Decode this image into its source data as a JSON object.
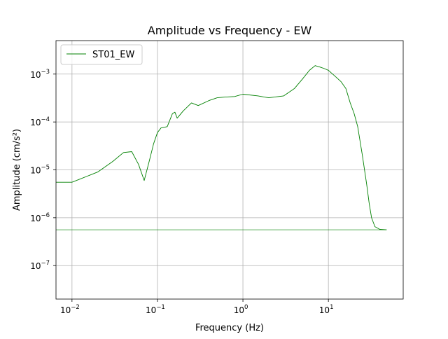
{
  "chart_data": {
    "type": "line",
    "title": "Amplitude vs Frequency - EW",
    "xlabel": "Frequency (Hz)",
    "ylabel": "Amplitude (cm/s²)",
    "x_scale": "log",
    "y_scale": "log",
    "xlim": [
      0.0065,
      75
    ],
    "ylim": [
      2e-08,
      0.005
    ],
    "grid": true,
    "legend_position": "top-left",
    "x_ticks": [
      {
        "base": "10",
        "exp": "−2",
        "value": 0.01
      },
      {
        "base": "10",
        "exp": "−1",
        "value": 0.1
      },
      {
        "base": "10",
        "exp": "0",
        "value": 1
      },
      {
        "base": "10",
        "exp": "1",
        "value": 10
      }
    ],
    "y_ticks": [
      {
        "base": "10",
        "exp": "−7",
        "value": 1e-07
      },
      {
        "base": "10",
        "exp": "−6",
        "value": 1e-06
      },
      {
        "base": "10",
        "exp": "−5",
        "value": 1e-05
      },
      {
        "base": "10",
        "exp": "−4",
        "value": 0.0001
      },
      {
        "base": "10",
        "exp": "−3",
        "value": 0.001
      }
    ],
    "series": [
      {
        "name": "ST01_EW",
        "color": "#008000",
        "x": [
          0.0065,
          0.01,
          0.02,
          0.03,
          0.04,
          0.05,
          0.06,
          0.07,
          0.08,
          0.09,
          0.1,
          0.11,
          0.13,
          0.15,
          0.16,
          0.17,
          0.2,
          0.25,
          0.3,
          0.4,
          0.5,
          0.6,
          0.8,
          1.0,
          1.5,
          2.0,
          3.0,
          4.0,
          5.0,
          6.0,
          7.0,
          8.0,
          9.0,
          10.0,
          12.0,
          14.0,
          16.0,
          18.0,
          20.0,
          22.0,
          25.0,
          28.0,
          30.0,
          32.0,
          35.0,
          40.0,
          48.0
        ],
        "y": [
          5.5e-06,
          5.5e-06,
          9e-06,
          1.5e-05,
          2.3e-05,
          2.4e-05,
          1.3e-05,
          6e-06,
          1.5e-05,
          3.5e-05,
          6e-05,
          7.5e-05,
          8e-05,
          0.00015,
          0.00016,
          0.00012,
          0.00017,
          0.00025,
          0.00022,
          0.00028,
          0.00032,
          0.00033,
          0.00034,
          0.00038,
          0.00035,
          0.00032,
          0.00035,
          0.0005,
          0.0008,
          0.0012,
          0.0015,
          0.0014,
          0.0013,
          0.0012,
          0.0009,
          0.0007,
          0.0005,
          0.00025,
          0.00015,
          8e-05,
          2e-05,
          5e-06,
          2e-06,
          1e-06,
          6.5e-07,
          5.7e-07,
          5.6e-07
        ]
      },
      {
        "name": "",
        "color": "#008000",
        "x": [
          0.0065,
          48.0
        ],
        "y": [
          5.6e-07,
          5.6e-07
        ]
      }
    ]
  }
}
